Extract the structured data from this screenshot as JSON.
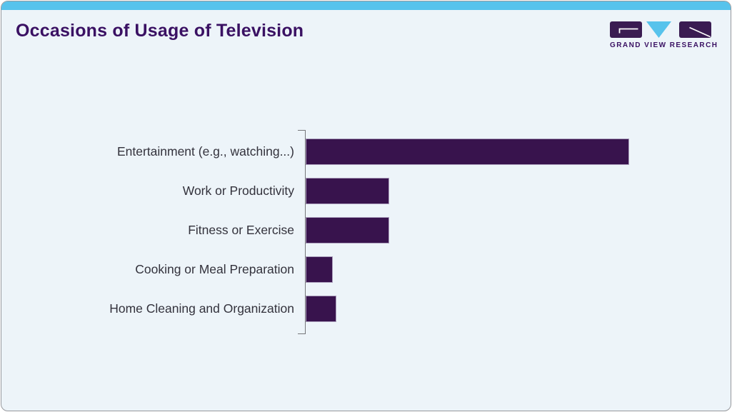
{
  "header": {
    "title": "Occasions of Usage of Television",
    "logo_text": "GRAND VIEW RESEARCH"
  },
  "colors": {
    "card_bg": "#edf4f9",
    "card_border": "#97999d",
    "top_strip": "#57c3ec",
    "title": "#3a1163",
    "label": "#33323c",
    "axis": "#75767a",
    "bar": "#38134d",
    "bar_edge": "#aa9dbb",
    "logo_purple": "#3a1c52",
    "logo_blue": "#57c3ec"
  },
  "chart_data": {
    "type": "bar",
    "orientation": "horizontal",
    "title": "Occasions of Usage of Television",
    "categories": [
      "Entertainment (e.g., watching...)",
      "Work or Productivity",
      "Fitness or Exercise",
      "Cooking or Meal Preparation",
      "Home Cleaning and Organization"
    ],
    "values": [
      100,
      25.8,
      25.8,
      8.4,
      9.5
    ],
    "value_note": "relative length, % of longest bar; no numeric axis or data labels shown",
    "xlabel": "",
    "ylabel": "",
    "xlim": [
      0,
      100
    ],
    "grid": "off",
    "legend": "none",
    "bar_color": "#38134d"
  }
}
